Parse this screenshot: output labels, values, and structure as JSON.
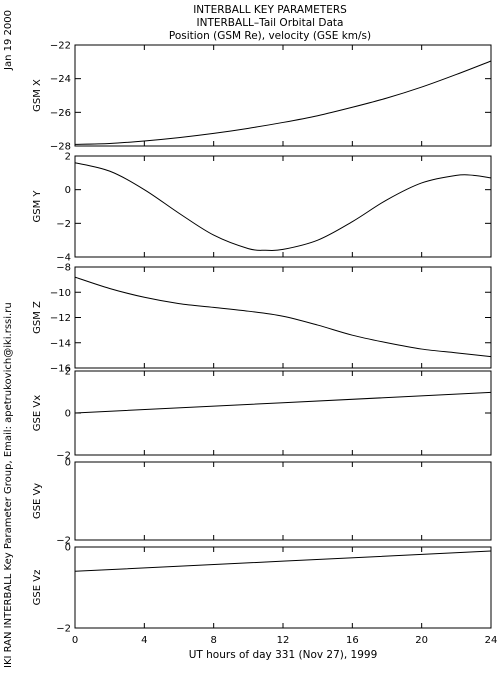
{
  "header": {
    "title": "INTERBALL KEY PARAMETERS",
    "subtitle1": "INTERBALL–Tail Orbital Data",
    "subtitle2": "Position (GSM Re), velocity (GSE km/s)"
  },
  "side": {
    "date": "Jan 19 2000",
    "credit": "IKI RAN INTERBALL Key Parameter Group, Email: apetrukovich@iki.rssi.ru"
  },
  "colors": {
    "line": "#000000",
    "background": "#ffffff"
  },
  "chart_data": [
    {
      "type": "line",
      "ylabel": "GSM X",
      "ylim": [
        -28,
        -22
      ],
      "yticks": [
        -28,
        -26,
        -24,
        -22
      ],
      "x": [
        0,
        2,
        4,
        6,
        8,
        10,
        12,
        14,
        16,
        18,
        20,
        22,
        24
      ],
      "y": [
        -27.9,
        -27.85,
        -27.7,
        -27.5,
        -27.25,
        -26.95,
        -26.6,
        -26.2,
        -25.7,
        -25.15,
        -24.5,
        -23.75,
        -22.95
      ]
    },
    {
      "type": "line",
      "ylabel": "GSM Y",
      "ylim": [
        -4,
        2
      ],
      "yticks": [
        -4,
        -2,
        0,
        2
      ],
      "x": [
        0,
        2,
        4,
        6,
        8,
        10,
        11,
        12,
        14,
        16,
        18,
        20,
        22,
        23,
        24
      ],
      "y": [
        1.6,
        1.1,
        0.0,
        -1.4,
        -2.7,
        -3.5,
        -3.6,
        -3.55,
        -3.0,
        -1.9,
        -0.6,
        0.4,
        0.85,
        0.85,
        0.7
      ]
    },
    {
      "type": "line",
      "ylabel": "GSM Z",
      "ylim": [
        -16,
        -8
      ],
      "yticks": [
        -16,
        -14,
        -12,
        -10,
        -8
      ],
      "x": [
        0,
        2,
        4,
        6,
        8,
        10,
        12,
        14,
        16,
        18,
        20,
        22,
        24
      ],
      "y": [
        -8.8,
        -9.7,
        -10.4,
        -10.9,
        -11.2,
        -11.5,
        -11.9,
        -12.6,
        -13.4,
        -14.0,
        -14.5,
        -14.8,
        -15.1
      ]
    },
    {
      "type": "line",
      "ylabel": "GSE Vx",
      "ylim": [
        -2,
        2
      ],
      "yticks": [
        -2,
        0,
        2
      ],
      "x": [
        0,
        24
      ],
      "y": [
        0.0,
        0.98
      ]
    },
    {
      "type": "line",
      "ylabel": "GSE Vy",
      "ylim": [
        -2,
        0
      ],
      "yticks": [
        -2,
        0
      ],
      "x": [],
      "y": []
    },
    {
      "type": "line",
      "ylabel": "GSE Vz",
      "ylim": [
        -2,
        0
      ],
      "yticks": [
        -2,
        0
      ],
      "x": [
        0,
        24
      ],
      "y": [
        -0.6,
        -0.1
      ]
    }
  ],
  "xaxis": {
    "label": "UT hours of day 331 (Nov 27), 1999",
    "xlim": [
      0,
      24
    ],
    "ticks": [
      0,
      4,
      8,
      12,
      16,
      20,
      24
    ]
  }
}
